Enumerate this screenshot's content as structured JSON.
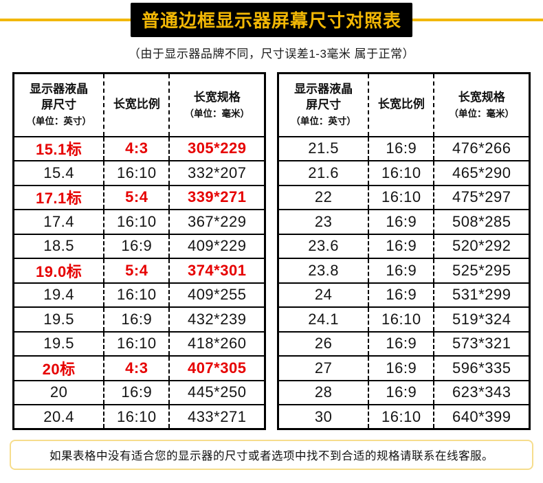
{
  "title": "普通边框显示器屏幕尺寸对照表",
  "subtitle": "（由于显示器品牌不同，尺寸误差1-3毫米 属于正常）",
  "footer": "如果表格中没有适合您的显示器的尺寸或者选项中找不到合适的规格请联系在线客服。",
  "colors": {
    "accent_yellow": "#f2b705",
    "title_bg": "#000000",
    "highlight_red": "#e60000"
  },
  "table_headers": {
    "col1_line1": "显示器液晶",
    "col1_line2": "屏尺寸",
    "col1_line3": "（单位：英寸）",
    "col2": "长宽比例",
    "col3_line1": "长宽规格",
    "col3_line2": "（单位：毫米）"
  },
  "tables": [
    {
      "rows": [
        {
          "size": "15.1标",
          "ratio": "4:3",
          "dims": "305*229",
          "highlight": true
        },
        {
          "size": "15.4",
          "ratio": "16:10",
          "dims": "332*207",
          "highlight": false
        },
        {
          "size": "17.1标",
          "ratio": "5:4",
          "dims": "339*271",
          "highlight": true
        },
        {
          "size": "17.4",
          "ratio": "16:10",
          "dims": "367*229",
          "highlight": false
        },
        {
          "size": "18.5",
          "ratio": "16:9",
          "dims": "409*229",
          "highlight": false
        },
        {
          "size": "19.0标",
          "ratio": "5:4",
          "dims": "374*301",
          "highlight": true
        },
        {
          "size": "19.4",
          "ratio": "16:10",
          "dims": "409*255",
          "highlight": false
        },
        {
          "size": "19.5",
          "ratio": "16:9",
          "dims": "432*239",
          "highlight": false
        },
        {
          "size": "19.5",
          "ratio": "16:10",
          "dims": "418*260",
          "highlight": false
        },
        {
          "size": "20标",
          "ratio": "4:3",
          "dims": "407*305",
          "highlight": true
        },
        {
          "size": "20",
          "ratio": "16:9",
          "dims": "445*250",
          "highlight": false
        },
        {
          "size": "20.4",
          "ratio": "16:10",
          "dims": "433*271",
          "highlight": false
        }
      ]
    },
    {
      "rows": [
        {
          "size": "21.5",
          "ratio": "16:9",
          "dims": "476*266",
          "highlight": false
        },
        {
          "size": "21.6",
          "ratio": "16:10",
          "dims": "465*290",
          "highlight": false
        },
        {
          "size": "22",
          "ratio": "16:10",
          "dims": "475*297",
          "highlight": false
        },
        {
          "size": "23",
          "ratio": "16:9",
          "dims": "508*285",
          "highlight": false
        },
        {
          "size": "23.6",
          "ratio": "16:9",
          "dims": "520*292",
          "highlight": false
        },
        {
          "size": "23.8",
          "ratio": "16:9",
          "dims": "525*295",
          "highlight": false
        },
        {
          "size": "24",
          "ratio": "16:9",
          "dims": "531*299",
          "highlight": false
        },
        {
          "size": "24.1",
          "ratio": "16:10",
          "dims": "519*324",
          "highlight": false
        },
        {
          "size": "26",
          "ratio": "16:9",
          "dims": "573*321",
          "highlight": false
        },
        {
          "size": "27",
          "ratio": "16:9",
          "dims": "596*335",
          "highlight": false
        },
        {
          "size": "28",
          "ratio": "16:9",
          "dims": "623*343",
          "highlight": false
        },
        {
          "size": "30",
          "ratio": "16:10",
          "dims": "640*399",
          "highlight": false
        }
      ]
    }
  ]
}
